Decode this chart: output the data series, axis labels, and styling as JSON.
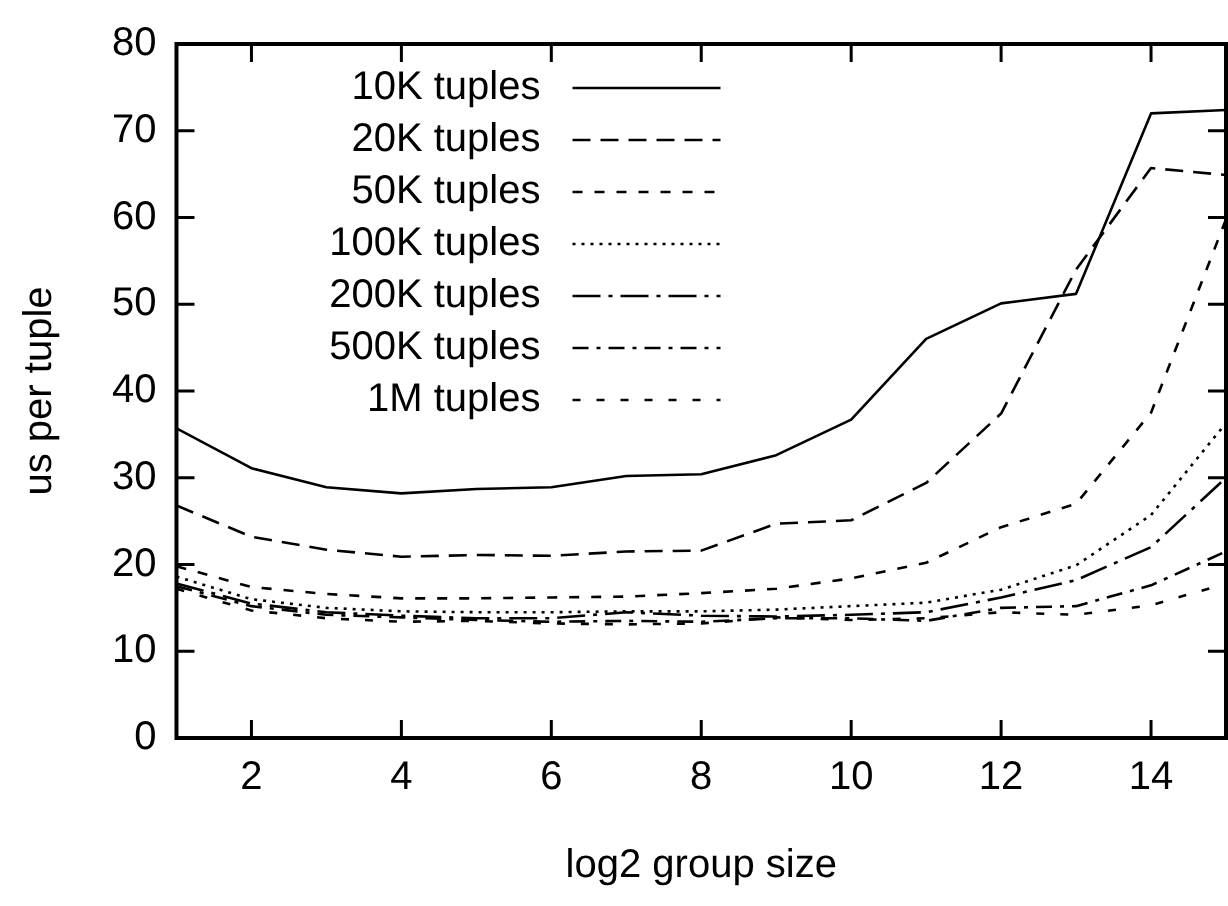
{
  "chart_data": {
    "type": "line",
    "xlabel": "log2 group size",
    "ylabel": "us per tuple",
    "x": [
      1,
      2,
      3,
      4,
      5,
      6,
      7,
      8,
      9,
      10,
      11,
      12,
      13,
      14,
      15
    ],
    "xlim": [
      1,
      15
    ],
    "xticks": [
      2,
      4,
      6,
      8,
      10,
      12,
      14
    ],
    "ylim": [
      0,
      80
    ],
    "yticks": [
      0,
      10,
      20,
      30,
      40,
      50,
      60,
      70,
      80
    ],
    "grid": false,
    "legend": "top left",
    "marker": "none",
    "series": [
      {
        "name": "10K tuples",
        "color": "#000000",
        "line_style": "solid",
        "values": [
          35.7,
          31.1,
          28.9,
          28.2,
          28.7,
          28.9,
          30.2,
          30.4,
          32.6,
          36.7,
          46,
          50.1,
          51.2,
          72,
          72.4
        ]
      },
      {
        "name": "20K tuples",
        "color": "#000000",
        "line_style": "dashed",
        "values": [
          26.8,
          23.2,
          21.7,
          20.9,
          21.1,
          21,
          21.5,
          21.6,
          24.7,
          25.1,
          29.4,
          37.4,
          54,
          65.7,
          64.9
        ]
      },
      {
        "name": "50K tuples",
        "color": "#000000",
        "line_style": "dashed",
        "values": [
          19.8,
          17.4,
          16.6,
          16.1,
          16.1,
          16.2,
          16.3,
          16.7,
          17.2,
          18.4,
          20.2,
          24.3,
          27,
          37.5,
          59.8
        ]
      },
      {
        "name": "100K tuples",
        "color": "#000000",
        "line_style": "dotted",
        "values": [
          18.6,
          16,
          15,
          14.6,
          14.5,
          14.5,
          14.6,
          14.6,
          14.8,
          15.2,
          15.6,
          17.1,
          19.9,
          25.7,
          36.3
        ]
      },
      {
        "name": "200K tuples",
        "color": "#000000",
        "line_style": "dashed",
        "values": [
          17.8,
          15.5,
          14.5,
          14.1,
          13.8,
          13.8,
          14.5,
          14.1,
          14,
          14.2,
          14.5,
          16.2,
          18.2,
          22,
          30
        ]
      },
      {
        "name": "500K tuples",
        "color": "#000000",
        "line_style": "dashed",
        "values": [
          17.5,
          15.2,
          14.2,
          13.9,
          13.6,
          13.4,
          13.5,
          13.4,
          13.8,
          13.8,
          13.5,
          15,
          15.2,
          17.6,
          21.5
        ]
      },
      {
        "name": "1M tuples",
        "color": "#000000",
        "line_style": "dashed",
        "values": [
          17.2,
          14.7,
          13.8,
          13.4,
          13.5,
          13.2,
          13.1,
          13.2,
          13.9,
          13.6,
          13.8,
          14.5,
          14.2,
          15.3,
          17.8
        ]
      }
    ]
  }
}
